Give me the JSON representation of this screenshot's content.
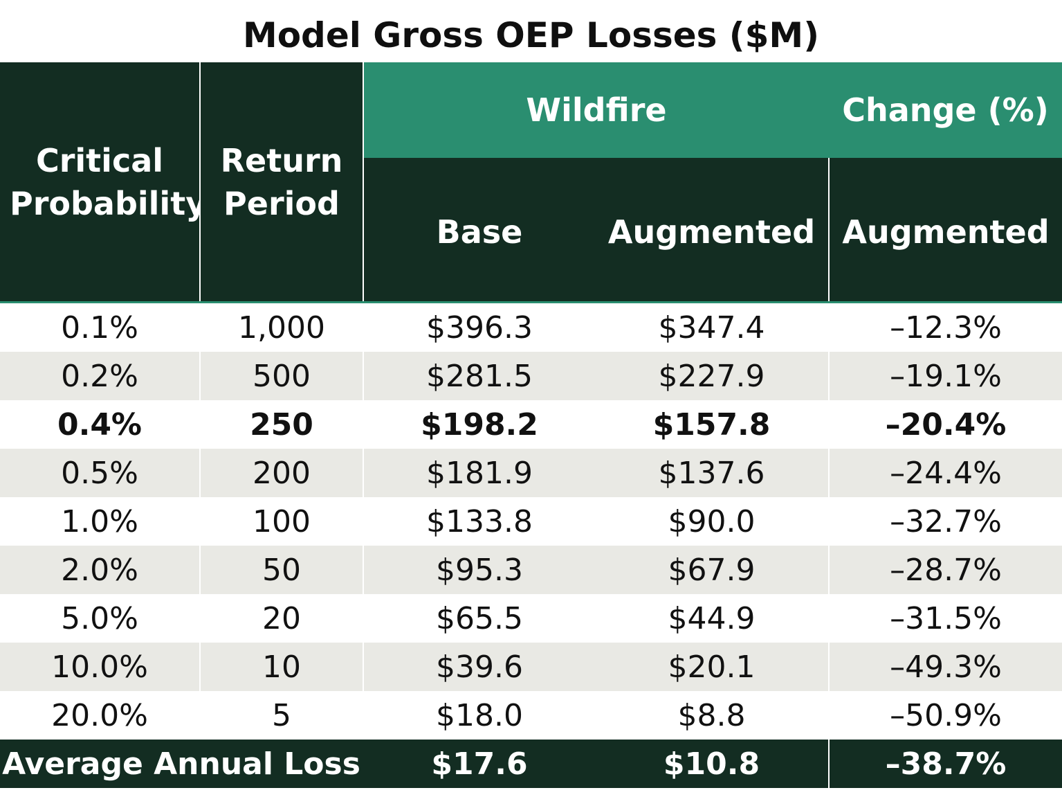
{
  "chart_data": {
    "type": "table",
    "title": "Model Gross OEP Losses ($M)",
    "header": {
      "col1": "Critical Probability",
      "col2": "Return Period",
      "group_wildfire": "Wildfire",
      "group_change": "Change (%)",
      "sub_base": "Base",
      "sub_augmented": "Augmented",
      "sub_change_augmented": "Augmented"
    },
    "rows": [
      {
        "prob": "0.1%",
        "rp": "1,000",
        "base": "$396.3",
        "aug": "$347.4",
        "chg": "–12.3%",
        "bold": false
      },
      {
        "prob": "0.2%",
        "rp": "500",
        "base": "$281.5",
        "aug": "$227.9",
        "chg": "–19.1%",
        "bold": false
      },
      {
        "prob": "0.4%",
        "rp": "250",
        "base": "$198.2",
        "aug": "$157.8",
        "chg": "–20.4%",
        "bold": true
      },
      {
        "prob": "0.5%",
        "rp": "200",
        "base": "$181.9",
        "aug": "$137.6",
        "chg": "–24.4%",
        "bold": false
      },
      {
        "prob": "1.0%",
        "rp": "100",
        "base": "$133.8",
        "aug": "$90.0",
        "chg": "–32.7%",
        "bold": false
      },
      {
        "prob": "2.0%",
        "rp": "50",
        "base": "$95.3",
        "aug": "$67.9",
        "chg": "–28.7%",
        "bold": false
      },
      {
        "prob": "5.0%",
        "rp": "20",
        "base": "$65.5",
        "aug": "$44.9",
        "chg": "–31.5%",
        "bold": false
      },
      {
        "prob": "10.0%",
        "rp": "10",
        "base": "$39.6",
        "aug": "$20.1",
        "chg": "–49.3%",
        "bold": false
      },
      {
        "prob": "20.0%",
        "rp": "5",
        "base": "$18.0",
        "aug": "$8.8",
        "chg": "–50.9%",
        "bold": false
      }
    ],
    "footer": {
      "label": "Average Annual Loss",
      "base": "$17.6",
      "aug": "$10.8",
      "chg": "–38.7%"
    }
  },
  "colors": {
    "header_dark": "#132d22",
    "header_green": "#2a8e70",
    "row_shade": "#e9e9e4"
  }
}
